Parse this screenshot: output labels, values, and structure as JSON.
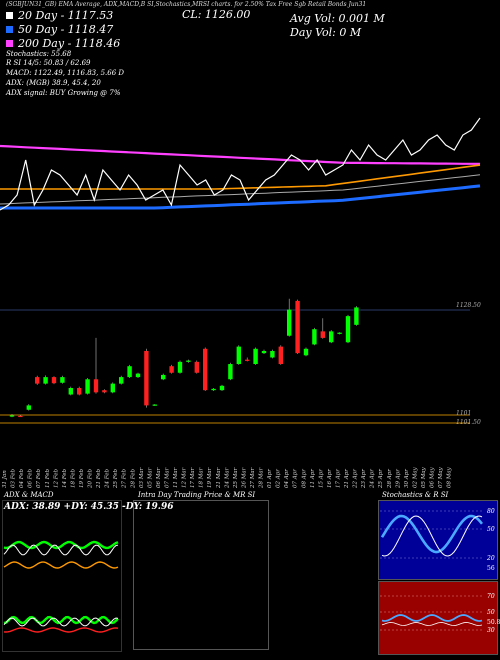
{
  "header": {
    "top_label": "(SGBJUN31_GB) EMA Average, ADX,MACD,B SI,Stochastics,MRSI charts. for 2.50% Tax Free Sgb Retail Bonds Jun31",
    "close_label": "CL: 1126.00",
    "avg_vol_label": "Avg Vol: 0.001 M",
    "day_vol_label": "Day Vol: 0 M",
    "ma20_label": "20  Day  - 1117.53",
    "ma50_label": "50  Day  - 1118.47",
    "ma200_label": "200  Day  - 1118.46",
    "stoch_label": "Stochastics: 55.68",
    "rsi_label": "R          SI 14/5: 50.83 / 62.69",
    "macd_label": "MACD: 1122.49,  1116.83,  5.66  D",
    "adx_label": "ADX:                    (MGB) 38.9,  45.4,  20",
    "adx_signal_label": "ADX   signal:                           BUY Growing @ 7%"
  },
  "price_levels": {
    "right_label_upper": "1128.50",
    "right_label_lower1": "1101",
    "right_label_lower2": "1101.50"
  },
  "x_axis_dates": [
    "31 Jan",
    "03 Feb",
    "04 Feb",
    "06 Feb",
    "07 Feb",
    "11 Feb",
    "12 Feb",
    "14 Feb",
    "18 Feb",
    "19 Feb",
    "20 Feb",
    "21 Feb",
    "24 Feb",
    "25 Feb",
    "27 Feb",
    "28 Feb",
    "03 Mar",
    "05 Mar",
    "06 Mar",
    "07 Mar",
    "11 Mar",
    "12 Mar",
    "17 Mar",
    "18 Mar",
    "19 Mar",
    "21 Mar",
    "24 Mar",
    "25 Mar",
    "26 Mar",
    "27 Mar",
    "28 Mar",
    "01 Apr",
    "02 Apr",
    "04 Apr",
    "07 Apr",
    "08 Apr",
    "11 Apr",
    "15 Apr",
    "16 Apr",
    "17 Apr",
    "21 Apr",
    "22 Apr",
    "23 Apr",
    "24 Apr",
    "25 Apr",
    "28 Apr",
    "29 Apr",
    "30 Apr",
    "02 May",
    "05 May",
    "06 May",
    "07 May",
    "08 May"
  ],
  "panels": {
    "adx_title": "ADX  & MACD",
    "adx_values": "ADX: 38.89 +DY: 45.35 -DY: 19.96",
    "mrsi_title": "Intra  Day Trading Price  & MR                        SI",
    "stoch_title": "Stochastics & R                  SI",
    "stoch_ticks": [
      "80",
      "50",
      "20"
    ],
    "rsi_ticks": [
      "70",
      "50",
      "30"
    ],
    "rsi_side_label": "50.83",
    "stoch_side_label": "56"
  },
  "colors": {
    "up": "#00ff00",
    "down": "#ff2020",
    "ema20": "#ffffff",
    "ema50": "#1e6bff",
    "ema200": "#ff40ff",
    "ema_orange": "#ff9a00",
    "level_line": "#c08000",
    "stoch_bg": "#000099",
    "rsi_bg": "#990000"
  },
  "chart_data": {
    "type": "candlestick",
    "title": "2.50% Tax Free Sgb Retail Bonds Jun31",
    "close": 1126.0,
    "ma20": 1117.53,
    "ma50": 1118.47,
    "ma200": 1118.46,
    "stochastics": 55.68,
    "rsi_14": 50.83,
    "rsi_5": 62.69,
    "macd": [
      1122.49,
      1116.83,
      5.66
    ],
    "adx": [
      38.9,
      45.4,
      20
    ],
    "candles": [
      {
        "x": 0,
        "o": 1101.0,
        "c": 1101.2,
        "h": 1101.5,
        "l": 1100.8
      },
      {
        "x": 1,
        "o": 1101.1,
        "c": 1101.0,
        "h": 1101.3,
        "l": 1100.9
      },
      {
        "x": 2,
        "o": 1102.5,
        "c": 1103.5,
        "h": 1103.8,
        "l": 1102.3
      },
      {
        "x": 3,
        "o": 1110.0,
        "c": 1108.5,
        "h": 1110.3,
        "l": 1108.2
      },
      {
        "x": 4,
        "o": 1108.5,
        "c": 1110.0,
        "h": 1110.4,
        "l": 1108.3
      },
      {
        "x": 5,
        "o": 1110.0,
        "c": 1108.6,
        "h": 1110.2,
        "l": 1108.4
      },
      {
        "x": 6,
        "o": 1108.7,
        "c": 1110.0,
        "h": 1110.3,
        "l": 1108.5
      },
      {
        "x": 7,
        "o": 1106.0,
        "c": 1107.5,
        "h": 1107.8,
        "l": 1105.8
      },
      {
        "x": 8,
        "o": 1107.5,
        "c": 1106.0,
        "h": 1107.8,
        "l": 1105.8
      },
      {
        "x": 9,
        "o": 1106.2,
        "c": 1109.5,
        "h": 1109.8,
        "l": 1106.0
      },
      {
        "x": 10,
        "o": 1109.5,
        "c": 1106.5,
        "h": 1119.0,
        "l": 1106.2
      },
      {
        "x": 11,
        "o": 1107.0,
        "c": 1106.5,
        "h": 1107.2,
        "l": 1106.3
      },
      {
        "x": 12,
        "o": 1106.5,
        "c": 1108.5,
        "h": 1108.8,
        "l": 1106.3
      },
      {
        "x": 13,
        "o": 1108.5,
        "c": 1110.0,
        "h": 1110.3,
        "l": 1108.3
      },
      {
        "x": 14,
        "o": 1110.0,
        "c": 1112.5,
        "h": 1112.8,
        "l": 1109.8
      },
      {
        "x": 15,
        "o": 1110.0,
        "c": 1110.8,
        "h": 1111.0,
        "l": 1109.8
      },
      {
        "x": 16,
        "o": 1116.0,
        "c": 1103.5,
        "h": 1116.5,
        "l": 1103.0
      },
      {
        "x": 17,
        "o": 1103.5,
        "c": 1103.7,
        "h": 1103.8,
        "l": 1103.4
      },
      {
        "x": 18,
        "o": 1109.5,
        "c": 1110.5,
        "h": 1110.8,
        "l": 1109.3
      },
      {
        "x": 19,
        "o": 1112.5,
        "c": 1111.0,
        "h": 1112.8,
        "l": 1110.8
      },
      {
        "x": 20,
        "o": 1111.0,
        "c": 1113.5,
        "h": 1113.8,
        "l": 1110.8
      },
      {
        "x": 21,
        "o": 1113.5,
        "c": 1113.8,
        "h": 1114.0,
        "l": 1113.3
      },
      {
        "x": 22,
        "o": 1113.5,
        "c": 1111.0,
        "h": 1113.8,
        "l": 1110.8
      },
      {
        "x": 23,
        "o": 1116.5,
        "c": 1107.0,
        "h": 1116.8,
        "l": 1106.8
      },
      {
        "x": 24,
        "o": 1107.0,
        "c": 1107.3,
        "h": 1107.5,
        "l": 1106.8
      },
      {
        "x": 25,
        "o": 1107.0,
        "c": 1108.0,
        "h": 1108.2,
        "l": 1106.8
      },
      {
        "x": 26,
        "o": 1109.5,
        "c": 1113.0,
        "h": 1113.3,
        "l": 1109.3
      },
      {
        "x": 27,
        "o": 1113.0,
        "c": 1117.0,
        "h": 1117.3,
        "l": 1112.8
      },
      {
        "x": 28,
        "o": 1114.0,
        "c": 1113.8,
        "h": 1114.5,
        "l": 1113.6
      },
      {
        "x": 29,
        "o": 1113.0,
        "c": 1116.5,
        "h": 1116.8,
        "l": 1112.8
      },
      {
        "x": 30,
        "o": 1115.5,
        "c": 1116.0,
        "h": 1116.3,
        "l": 1115.3
      },
      {
        "x": 31,
        "o": 1114.5,
        "c": 1116.0,
        "h": 1116.3,
        "l": 1114.3
      },
      {
        "x": 32,
        "o": 1117.0,
        "c": 1113.0,
        "h": 1117.3,
        "l": 1112.8
      },
      {
        "x": 33,
        "o": 1119.5,
        "c": 1125.5,
        "h": 1128.0,
        "l": 1119.3
      },
      {
        "x": 34,
        "o": 1127.5,
        "c": 1115.5,
        "h": 1127.8,
        "l": 1115.3
      },
      {
        "x": 35,
        "o": 1115.0,
        "c": 1116.5,
        "h": 1116.8,
        "l": 1114.8
      },
      {
        "x": 36,
        "o": 1117.5,
        "c": 1121.0,
        "h": 1121.3,
        "l": 1117.3
      },
      {
        "x": 37,
        "o": 1120.5,
        "c": 1119.0,
        "h": 1123.5,
        "l": 1118.8
      },
      {
        "x": 38,
        "o": 1118.0,
        "c": 1120.5,
        "h": 1120.8,
        "l": 1117.8
      },
      {
        "x": 39,
        "o": 1120.0,
        "c": 1120.2,
        "h": 1120.3,
        "l": 1119.8
      },
      {
        "x": 40,
        "o": 1118.0,
        "c": 1124.0,
        "h": 1124.3,
        "l": 1117.8
      },
      {
        "x": 41,
        "o": 1122.0,
        "c": 1126.0,
        "h": 1126.3,
        "l": 1121.8
      }
    ]
  }
}
